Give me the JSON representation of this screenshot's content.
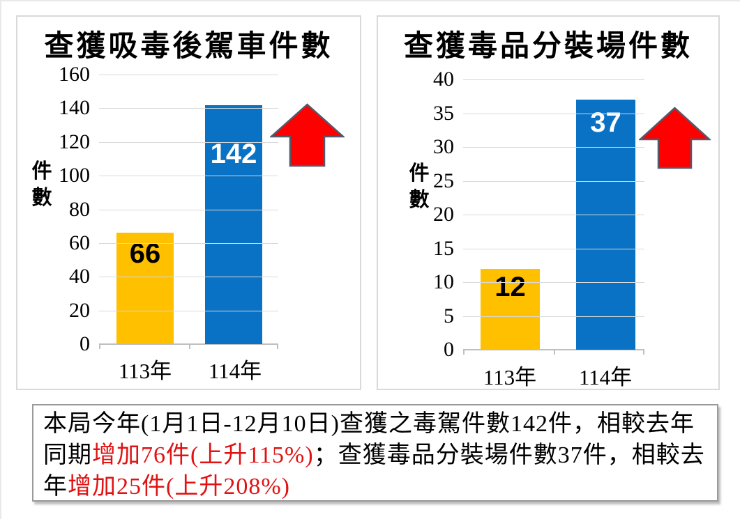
{
  "colors": {
    "bar_yellow": "#FFC000",
    "bar_blue": "#0A72C4",
    "arrow_fill": "#FF0000",
    "arrow_outline": "#54596B",
    "gridline": "#D9D9D9",
    "axis": "#BFBFBF",
    "caption_black": "#000000",
    "caption_red": "#E01212",
    "panel_border": "#D9D9D9",
    "caption_border": "#9A9A9A"
  },
  "chart_data": [
    {
      "type": "bar",
      "title": "查獲吸毒後駕車件數",
      "ylabel": "件數",
      "xlabel": "",
      "categories": [
        "113年",
        "114年"
      ],
      "values": [
        66,
        142
      ],
      "bar_colors": [
        "#FFC000",
        "#0A72C4"
      ],
      "value_label_colors": [
        "#000000",
        "#FFFFFF"
      ],
      "ylim": [
        0,
        160
      ],
      "y_ticks": [
        0,
        20,
        40,
        60,
        80,
        100,
        120,
        140,
        160
      ],
      "grid": true,
      "legend": "none",
      "annotation": "red-up-arrow"
    },
    {
      "type": "bar",
      "title": "查獲毒品分裝場件數",
      "ylabel": "件數",
      "xlabel": "",
      "categories": [
        "113年",
        "114年"
      ],
      "values": [
        12,
        37
      ],
      "bar_colors": [
        "#FFC000",
        "#0A72C4"
      ],
      "value_label_colors": [
        "#000000",
        "#FFFFFF"
      ],
      "ylim": [
        0,
        40
      ],
      "y_ticks": [
        0,
        5,
        10,
        15,
        20,
        25,
        30,
        35,
        40
      ],
      "grid": true,
      "legend": "none",
      "annotation": "red-up-arrow"
    }
  ],
  "caption": {
    "segments": [
      {
        "text": "本局今年(1月1日-12月10日)查獲之毒駕件數142件，相較去年同期",
        "emphasis": false
      },
      {
        "text": "增加76件(上升115%)",
        "emphasis": true
      },
      {
        "text": "；查獲毒品分裝場件數37件，相較去年",
        "emphasis": false
      },
      {
        "text": "增加25件(上升208%)",
        "emphasis": true
      }
    ]
  }
}
